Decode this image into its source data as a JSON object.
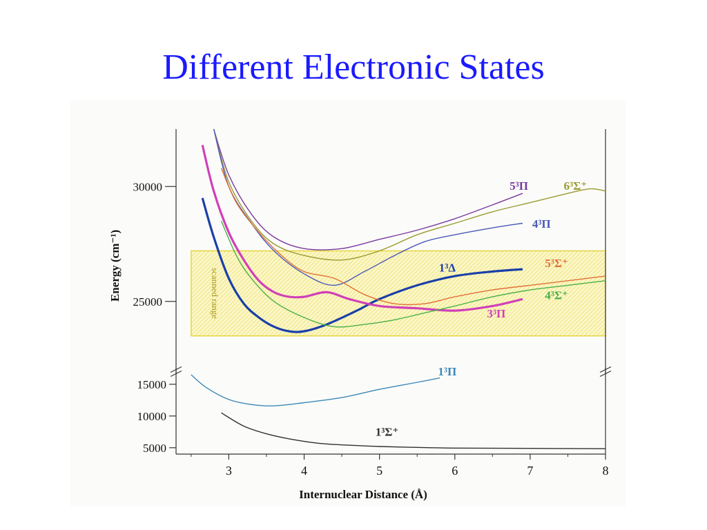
{
  "slide": {
    "title": "Different Electronic States"
  },
  "chart_data": {
    "type": "line",
    "xlabel": "Internuclear Distance (Å)",
    "ylabel": "Energy (cm⁻¹)",
    "xlim": [
      2.3,
      8
    ],
    "x_ticks": [
      3,
      4,
      5,
      6,
      7,
      8
    ],
    "y_upper_ticks": [
      25000,
      30000
    ],
    "y_lower_ticks": [
      5000,
      10000,
      15000
    ],
    "ylim_upper": [
      22500,
      32500
    ],
    "ylim_lower": [
      4000,
      16500
    ],
    "axis_break": true,
    "shaded_region": {
      "label": "scanned range",
      "y_range": [
        23500,
        27200
      ],
      "x_range": [
        2.5,
        8
      ]
    },
    "series": [
      {
        "name": "5³Π",
        "label_base": "5",
        "label_sup": "3",
        "label_sym": "Π",
        "label_plus": "",
        "color": "#7a3aa0",
        "label_x": 6.85,
        "label_y": 29850,
        "panel": "upper",
        "x": [
          2.8,
          3.0,
          3.3,
          3.6,
          4.0,
          4.5,
          5.0,
          5.5,
          6.0,
          6.5,
          6.9
        ],
        "y": [
          32500,
          30500,
          28800,
          27800,
          27300,
          27300,
          27700,
          28100,
          28600,
          29200,
          29700
        ]
      },
      {
        "name": "6³Σ⁺",
        "label_base": "6",
        "label_sup": "3",
        "label_sym": "Σ",
        "label_plus": "+",
        "color": "#9a9a30",
        "label_x": 7.6,
        "label_y": 29850,
        "panel": "upper",
        "x": [
          2.8,
          3.0,
          3.3,
          3.6,
          4.0,
          4.5,
          5.0,
          5.5,
          6.0,
          6.5,
          7.0,
          7.5,
          7.8,
          8.0
        ],
        "y": [
          32500,
          30200,
          28500,
          27500,
          27000,
          26800,
          27200,
          27900,
          28400,
          28900,
          29300,
          29700,
          29900,
          29800
        ]
      },
      {
        "name": "4³Π",
        "label_base": "4",
        "label_sup": "3",
        "label_sym": "Π",
        "label_plus": "",
        "color": "#4a58b8",
        "label_x": 7.15,
        "label_y": 28200,
        "panel": "upper",
        "x": [
          2.8,
          3.0,
          3.3,
          3.6,
          4.0,
          4.4,
          4.8,
          5.2,
          5.6,
          6.0,
          6.5,
          6.9
        ],
        "y": [
          32500,
          30000,
          28400,
          27200,
          26200,
          25700,
          26300,
          27000,
          27600,
          27900,
          28200,
          28400
        ]
      },
      {
        "name": "1³Δ",
        "label_base": "1",
        "label_sup": "3",
        "label_sym": "Δ",
        "label_plus": "",
        "color": "#1a3fa8",
        "label_x": 5.9,
        "label_y": 26300,
        "panel": "upper",
        "x": [
          2.65,
          2.8,
          3.0,
          3.2,
          3.4,
          3.6,
          3.8,
          4.0,
          4.3,
          4.7,
          5.0,
          5.5,
          6.0,
          6.5,
          6.9
        ],
        "y": [
          29500,
          27800,
          26000,
          24900,
          24300,
          23900,
          23700,
          23700,
          24000,
          24600,
          25100,
          25700,
          26100,
          26300,
          26400
        ]
      },
      {
        "name": "5³Σ⁺",
        "label_base": "5",
        "label_sup": "3",
        "label_sym": "Σ",
        "label_plus": "+",
        "color": "#e07038",
        "label_x": 7.35,
        "label_y": 26500,
        "panel": "upper",
        "x": [
          2.9,
          3.1,
          3.4,
          3.7,
          4.0,
          4.4,
          4.8,
          5.2,
          5.6,
          6.0,
          6.5,
          7.0,
          7.5,
          8.0
        ],
        "y": [
          30800,
          29300,
          28000,
          27000,
          26300,
          26000,
          25300,
          24900,
          24900,
          25200,
          25500,
          25700,
          25900,
          26100
        ]
      },
      {
        "name": "3³Π",
        "label_base": "3",
        "label_sup": "3",
        "label_sym": "Π",
        "label_plus": "",
        "color": "#d040b8",
        "label_x": 6.55,
        "label_y": 24300,
        "panel": "upper",
        "x": [
          2.65,
          2.8,
          3.0,
          3.2,
          3.4,
          3.6,
          3.8,
          4.0,
          4.3,
          4.6,
          5.0,
          5.5,
          6.0,
          6.5,
          6.9
        ],
        "y": [
          31800,
          29800,
          28000,
          26800,
          25900,
          25400,
          25200,
          25200,
          25400,
          25100,
          24800,
          24700,
          24600,
          24800,
          25100
        ]
      },
      {
        "name": "4³Σ⁺",
        "label_base": "4",
        "label_sup": "3",
        "label_sym": "Σ",
        "label_plus": "+",
        "color": "#48b048",
        "label_x": 7.35,
        "label_y": 25100,
        "panel": "upper",
        "x": [
          2.9,
          3.1,
          3.3,
          3.6,
          4.0,
          4.4,
          4.8,
          5.2,
          5.6,
          6.0,
          6.5,
          7.0,
          7.5,
          8.0
        ],
        "y": [
          28500,
          27000,
          26000,
          25000,
          24300,
          23900,
          24000,
          24200,
          24500,
          24800,
          25200,
          25500,
          25700,
          25900
        ]
      },
      {
        "name": "1³Π",
        "label_base": "1",
        "label_sup": "3",
        "label_sym": "Π",
        "label_plus": "",
        "color": "#3a88b8",
        "label_x": 5.9,
        "label_y": 16400,
        "panel": "lower",
        "x": [
          2.5,
          2.7,
          3.0,
          3.3,
          3.6,
          4.0,
          4.5,
          5.0,
          5.5,
          5.8
        ],
        "y": [
          16500,
          14500,
          12600,
          11800,
          11600,
          12100,
          12900,
          14200,
          15300,
          16000
        ]
      },
      {
        "name": "1³Σ⁺",
        "label_base": "1",
        "label_sup": "3",
        "label_sym": "Σ",
        "label_plus": "+",
        "color": "#303030",
        "label_x": 5.1,
        "label_y": 6900,
        "panel": "lower",
        "x": [
          2.9,
          3.2,
          3.5,
          3.8,
          4.2,
          4.6,
          5.0,
          5.5,
          6.0,
          7.0,
          8.0
        ],
        "y": [
          10500,
          8400,
          7200,
          6400,
          5700,
          5400,
          5200,
          5050,
          4950,
          4900,
          4850
        ]
      }
    ]
  }
}
